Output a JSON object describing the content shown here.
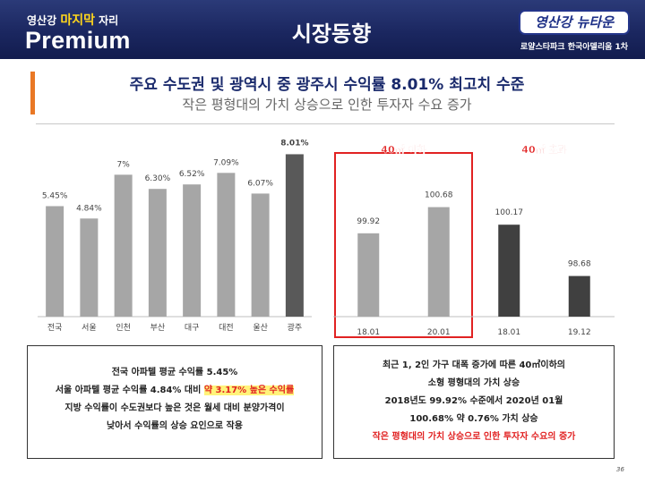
{
  "header": {
    "subtitle_prefix": "영산강",
    "subtitle_highlight": "마지막",
    "subtitle_suffix": "자리",
    "brand": "Premium",
    "title": "시장동향",
    "logo_text": "영산강 뉴타운",
    "sublogo": "로얄스타파크  한국아델리움 1차"
  },
  "headline": "주요 수도권 및 광역시 중 광주시 수익률 8.01% 최고치 수준",
  "subline": "작은 평형대의 가치 상승으로 인한 투자자 수요 증가",
  "chart_data": [
    {
      "type": "bar",
      "categories": [
        "전국",
        "서울",
        "인천",
        "부산",
        "대구",
        "대전",
        "울산",
        "광주"
      ],
      "values": [
        5.45,
        4.84,
        7.0,
        6.3,
        6.52,
        7.09,
        6.07,
        8.01
      ],
      "data_labels": [
        "5.45%",
        "4.84%",
        "7%",
        "6.30%",
        "6.52%",
        "7.09%",
        "6.07%",
        "8.01%"
      ],
      "highlight_index": 7,
      "ylim": [
        0,
        9
      ],
      "colors": {
        "default": "#a6a6a6",
        "highlight": "#595959"
      }
    },
    {
      "type": "bar",
      "categories": [
        "18.01",
        "20.01",
        "18.01",
        "19.12"
      ],
      "values": [
        99.92,
        100.68,
        100.17,
        98.68
      ],
      "data_labels": [
        "99.92",
        "100.68",
        "100.17",
        "98.68"
      ],
      "ylim": [
        97.5,
        101.5
      ],
      "group_labels": [
        "40㎡ 이하",
        "40㎡ 초과"
      ],
      "colors": {
        "small": "#a6a6a6",
        "large": "#404040",
        "group_label": "#e12222"
      }
    }
  ],
  "box_left": {
    "line1": "전국 아파텔 평균 수익률 5.45%",
    "line2_pre": "서울 아파텔 평균 수익률 4.84% 대비 ",
    "line2_hl": "약 3.17% 높은 수익률",
    "line3": "지방 수익률이 수도권보다 높은 것은 월세 대비 분양가격이",
    "line4": "낮아서 수익률의 상승 요인으로 작용"
  },
  "box_right": {
    "line1": "최근 1, 2인 가구 대폭 증가에 따른 40㎡이하의",
    "line2": "소형 평형대의 가치 상승",
    "line3": "2018년도 99.92% 수준에서 2020년 01월",
    "line4": "100.68% 약 0.76% 가치 상승",
    "line5": "작은 평형대의 가치 상승으로 인한 투자자 수요의 증가"
  },
  "page_number": "36"
}
